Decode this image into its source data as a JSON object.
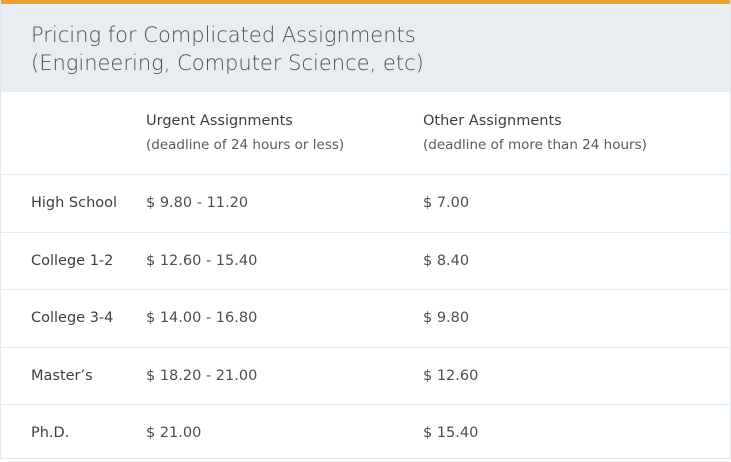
{
  "colors": {
    "accent": "#f29f24",
    "header_bg": "#e9edf1"
  },
  "title_line1": "Pricing for Complicated Assignments",
  "title_line2": "(Engineering, Computer Science, etc)",
  "columns": [
    {
      "title": "Urgent Assignments",
      "subtitle": "(deadline of 24 hours or less)"
    },
    {
      "title": "Other Assignments",
      "subtitle": "(deadline of more than 24 hours)"
    }
  ],
  "rows": [
    {
      "level": "High School",
      "urgent": "$ 9.80 - 11.20",
      "other": "$ 7.00"
    },
    {
      "level": "College 1-2",
      "urgent": "$ 12.60 - 15.40",
      "other": "$ 8.40"
    },
    {
      "level": "College 3-4",
      "urgent": "$ 14.00 - 16.80",
      "other": "$ 9.80"
    },
    {
      "level": "Master’s",
      "urgent": "$ 18.20 - 21.00",
      "other": "$ 12.60"
    },
    {
      "level": "Ph.D.",
      "urgent": "$ 21.00",
      "other": "$ 15.40"
    }
  ]
}
